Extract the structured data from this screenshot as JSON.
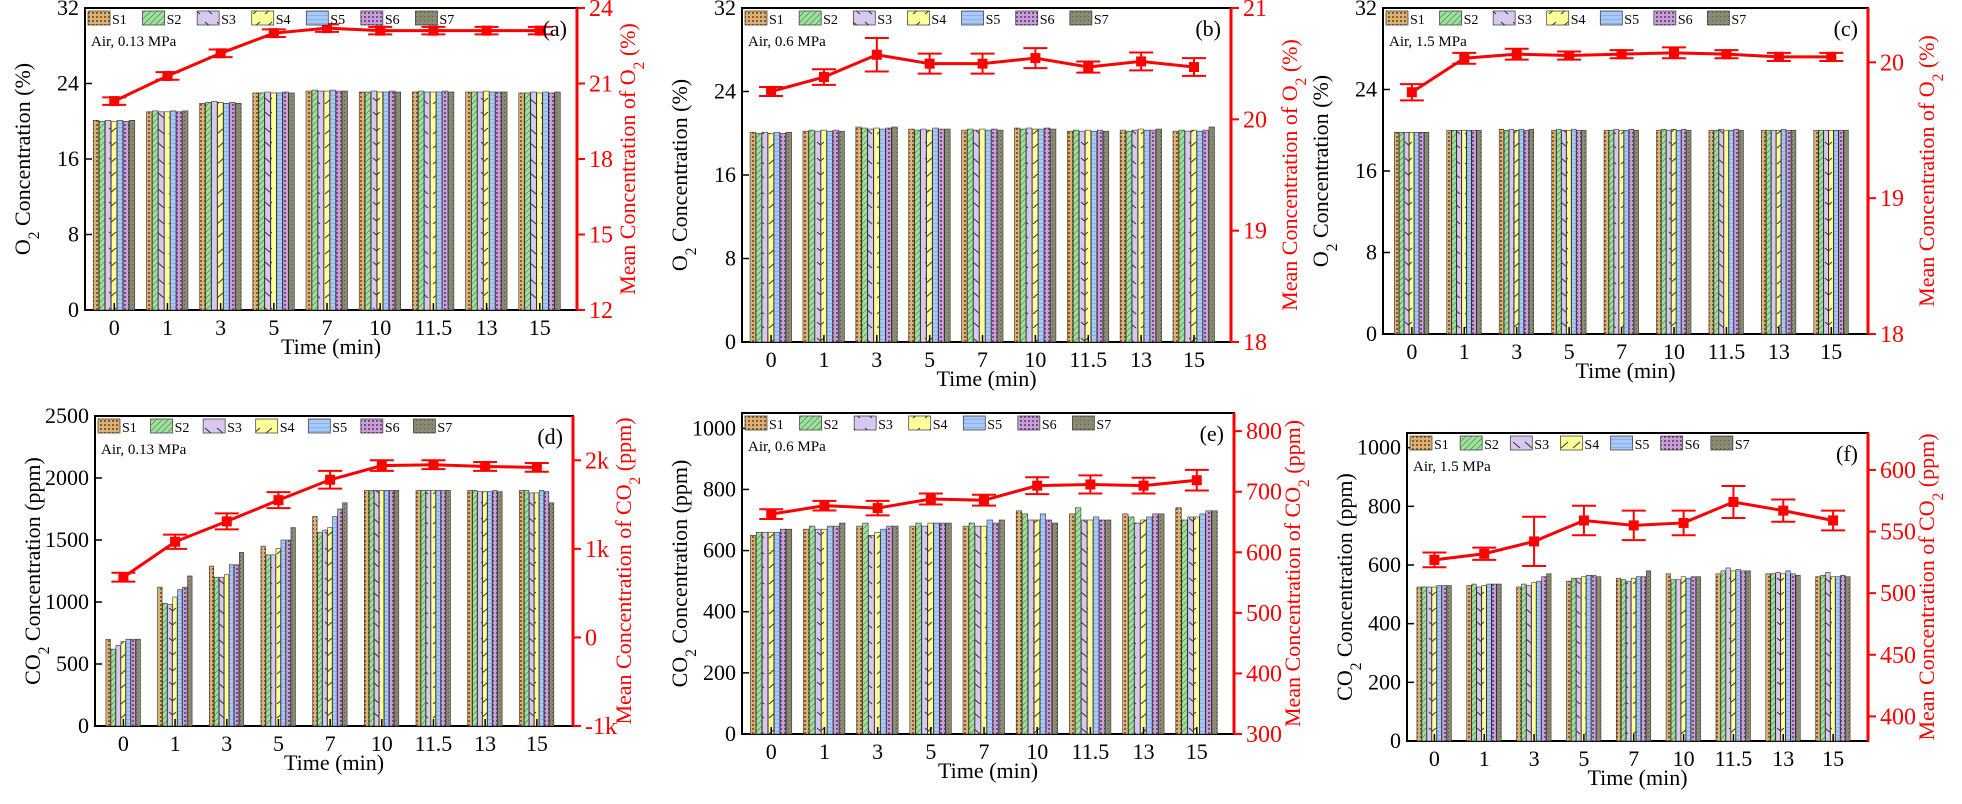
{
  "figure": {
    "time_axis_label": "Time (min)",
    "series_names": [
      "S1",
      "S2",
      "S3",
      "S4",
      "S5",
      "S6",
      "S7"
    ],
    "series_colors": [
      "#c8a060",
      "#9fe09f",
      "#d8c8f0",
      "#ffff99",
      "#a8c8f8",
      "#b890c8",
      "#8a8a72"
    ],
    "mean_color": "#ff0000"
  },
  "chart_data": [
    {
      "id": "a",
      "panel_label": "(a)",
      "condition": "Air, 0.13 MPa",
      "type": "bar",
      "categories": [
        "0",
        "1",
        "3",
        "5",
        "7",
        "10",
        "11.5",
        "13",
        "15"
      ],
      "xlabel": "Time (min)",
      "ylabel": "O2 Concentration (%)",
      "ylim": [
        0,
        32
      ],
      "yticks": [
        0,
        8,
        16,
        24,
        32
      ],
      "series": [
        {
          "name": "S1",
          "values": [
            20.1,
            21.0,
            21.9,
            23.0,
            23.2,
            23.1,
            23.1,
            23.1,
            23.0
          ]
        },
        {
          "name": "S2",
          "values": [
            20.0,
            21.1,
            22.0,
            23.0,
            23.3,
            23.1,
            23.2,
            23.1,
            23.0
          ]
        },
        {
          "name": "S3",
          "values": [
            20.1,
            21.0,
            22.1,
            23.1,
            23.2,
            23.2,
            23.1,
            23.1,
            23.1
          ]
        },
        {
          "name": "S4",
          "values": [
            20.0,
            21.0,
            22.0,
            23.0,
            23.2,
            23.1,
            23.1,
            23.2,
            23.0
          ]
        },
        {
          "name": "S5",
          "values": [
            20.1,
            21.1,
            21.9,
            23.0,
            23.3,
            23.1,
            23.1,
            23.1,
            23.1
          ]
        },
        {
          "name": "S6",
          "values": [
            20.0,
            21.0,
            22.0,
            23.1,
            23.2,
            23.2,
            23.2,
            23.1,
            23.0
          ]
        },
        {
          "name": "S7",
          "values": [
            20.1,
            21.1,
            21.9,
            23.0,
            23.2,
            23.1,
            23.1,
            23.1,
            23.1
          ]
        }
      ],
      "mean": {
        "ylabel": "Mean Concentration of O2 (%)",
        "ylim": [
          12,
          24
        ],
        "yticks": [
          12,
          15,
          18,
          21,
          24
        ],
        "values": [
          20.3,
          21.3,
          22.2,
          23.0,
          23.2,
          23.1,
          23.1,
          23.1,
          23.1
        ],
        "errors": [
          0.15,
          0.15,
          0.15,
          0.15,
          0.15,
          0.15,
          0.15,
          0.15,
          0.15
        ]
      }
    },
    {
      "id": "b",
      "panel_label": "(b)",
      "condition": "Air, 0.6 MPa",
      "type": "bar",
      "categories": [
        "0",
        "1",
        "3",
        "5",
        "7",
        "10",
        "11.5",
        "13",
        "15"
      ],
      "xlabel": "Time (min)",
      "ylabel": "O2 Concentration (%)",
      "ylim": [
        0,
        32
      ],
      "yticks": [
        0,
        8,
        16,
        24,
        32
      ],
      "series": [
        {
          "name": "S1",
          "values": [
            20.1,
            20.2,
            20.6,
            20.4,
            20.3,
            20.5,
            20.2,
            20.3,
            20.2
          ]
        },
        {
          "name": "S2",
          "values": [
            20.0,
            20.3,
            20.5,
            20.3,
            20.4,
            20.4,
            20.3,
            20.2,
            20.3
          ]
        },
        {
          "name": "S3",
          "values": [
            20.1,
            20.2,
            20.4,
            20.4,
            20.3,
            20.5,
            20.2,
            20.3,
            20.2
          ]
        },
        {
          "name": "S4",
          "values": [
            20.0,
            20.3,
            20.5,
            20.3,
            20.4,
            20.4,
            20.3,
            20.4,
            20.3
          ]
        },
        {
          "name": "S5",
          "values": [
            20.1,
            20.2,
            20.4,
            20.5,
            20.3,
            20.4,
            20.2,
            20.3,
            20.2
          ]
        },
        {
          "name": "S6",
          "values": [
            20.0,
            20.3,
            20.5,
            20.4,
            20.4,
            20.5,
            20.3,
            20.3,
            20.3
          ]
        },
        {
          "name": "S7",
          "values": [
            20.1,
            20.2,
            20.6,
            20.4,
            20.3,
            20.4,
            20.2,
            20.4,
            20.6
          ]
        }
      ],
      "mean": {
        "ylabel": "Mean Concentration of O2 (%)",
        "ylim": [
          18,
          21
        ],
        "yticks": [
          18,
          19,
          20,
          21
        ],
        "values": [
          20.25,
          20.38,
          20.58,
          20.5,
          20.5,
          20.55,
          20.47,
          20.52,
          20.47
        ],
        "errors": [
          0.04,
          0.07,
          0.15,
          0.09,
          0.09,
          0.09,
          0.05,
          0.08,
          0.08
        ]
      }
    },
    {
      "id": "c",
      "panel_label": "(c)",
      "condition": "Air, 1.5 MPa",
      "type": "bar",
      "categories": [
        "0",
        "1",
        "3",
        "5",
        "7",
        "10",
        "11.5",
        "13",
        "15"
      ],
      "xlabel": "Time (min)",
      "ylabel": "O2 Concentration (%)",
      "ylim": [
        0,
        32
      ],
      "yticks": [
        0,
        8,
        16,
        24,
        32
      ],
      "series": [
        {
          "name": "S1",
          "values": [
            19.8,
            20.0,
            20.1,
            20.0,
            20.0,
            20.0,
            20.0,
            20.0,
            20.0
          ]
        },
        {
          "name": "S2",
          "values": [
            19.8,
            20.0,
            20.0,
            20.1,
            20.0,
            20.1,
            20.0,
            20.0,
            20.0
          ]
        },
        {
          "name": "S3",
          "values": [
            19.8,
            20.0,
            20.1,
            20.0,
            20.1,
            20.0,
            20.1,
            20.0,
            20.0
          ]
        },
        {
          "name": "S4",
          "values": [
            19.8,
            20.0,
            20.0,
            20.0,
            20.0,
            20.1,
            20.0,
            20.0,
            20.0
          ]
        },
        {
          "name": "S5",
          "values": [
            19.8,
            20.0,
            20.1,
            20.1,
            20.0,
            20.0,
            20.0,
            20.1,
            20.0
          ]
        },
        {
          "name": "S6",
          "values": [
            19.8,
            20.0,
            20.0,
            20.0,
            20.1,
            20.1,
            20.1,
            20.0,
            20.0
          ]
        },
        {
          "name": "S7",
          "values": [
            19.8,
            20.0,
            20.1,
            20.0,
            20.0,
            20.0,
            20.0,
            20.0,
            20.0
          ]
        }
      ],
      "mean": {
        "ylabel": "Mean Concentration of O2 (%)",
        "ylim": [
          18,
          20.4
        ],
        "yticks": [
          18,
          19,
          20
        ],
        "values": [
          19.78,
          20.03,
          20.06,
          20.05,
          20.06,
          20.07,
          20.06,
          20.04,
          20.04
        ],
        "errors": [
          0.06,
          0.04,
          0.04,
          0.03,
          0.03,
          0.04,
          0.03,
          0.03,
          0.03
        ]
      }
    },
    {
      "id": "d",
      "panel_label": "(d)",
      "condition": "Air, 0.13 MPa",
      "type": "bar",
      "categories": [
        "0",
        "1",
        "3",
        "5",
        "7",
        "10",
        "11.5",
        "13",
        "15"
      ],
      "xlabel": "Time (min)",
      "ylabel": "CO2 Concentration (ppm)",
      "ylim": [
        0,
        2500
      ],
      "yticks": [
        0,
        500,
        1000,
        1500,
        2000,
        2500
      ],
      "series": [
        {
          "name": "S1",
          "values": [
            700,
            1120,
            1290,
            1450,
            1690,
            1900,
            1900,
            1900,
            1900
          ]
        },
        {
          "name": "S2",
          "values": [
            620,
            990,
            1200,
            1380,
            1560,
            1900,
            1900,
            1900,
            1900
          ]
        },
        {
          "name": "S3",
          "values": [
            650,
            980,
            1200,
            1380,
            1580,
            1900,
            1900,
            1890,
            1880
          ]
        },
        {
          "name": "S4",
          "values": [
            680,
            1040,
            1220,
            1430,
            1600,
            1900,
            1900,
            1890,
            1880
          ]
        },
        {
          "name": "S5",
          "values": [
            700,
            1100,
            1300,
            1500,
            1690,
            1900,
            1900,
            1890,
            1900
          ]
        },
        {
          "name": "S6",
          "values": [
            700,
            1120,
            1300,
            1500,
            1750,
            1900,
            1900,
            1900,
            1890
          ]
        },
        {
          "name": "S7",
          "values": [
            700,
            1210,
            1400,
            1600,
            1800,
            1900,
            1900,
            1890,
            1800
          ]
        }
      ],
      "mean": {
        "ylabel": "Mean Concentration of CO2 (ppm)",
        "ylim": [
          -1000,
          2500
        ],
        "yticks": [
          -1000,
          0,
          1000,
          2000
        ],
        "yticklabels": [
          "-1k",
          "0",
          "1k",
          "2k"
        ],
        "values": [
          680,
          1080,
          1310,
          1550,
          1780,
          1940,
          1950,
          1930,
          1920
        ],
        "errors": [
          50,
          80,
          90,
          90,
          100,
          60,
          50,
          50,
          50
        ]
      }
    },
    {
      "id": "e",
      "panel_label": "(e)",
      "condition": "Air, 0.6 MPa",
      "type": "bar",
      "categories": [
        "0",
        "1",
        "3",
        "5",
        "7",
        "10",
        "11.5",
        "13",
        "15"
      ],
      "xlabel": "Time (min)",
      "ylabel": "CO2 Concentration (ppm)",
      "ylim": [
        0,
        1050
      ],
      "yticks": [
        0,
        200,
        400,
        600,
        800,
        1000
      ],
      "series": [
        {
          "name": "S1",
          "values": [
            650,
            670,
            680,
            680,
            680,
            730,
            720,
            720,
            740
          ]
        },
        {
          "name": "S2",
          "values": [
            660,
            680,
            690,
            690,
            690,
            720,
            740,
            710,
            700
          ]
        },
        {
          "name": "S3",
          "values": [
            660,
            670,
            650,
            680,
            680,
            700,
            700,
            690,
            710
          ]
        },
        {
          "name": "S4",
          "values": [
            660,
            670,
            660,
            690,
            680,
            700,
            700,
            700,
            710
          ]
        },
        {
          "name": "S5",
          "values": [
            660,
            680,
            670,
            690,
            700,
            720,
            710,
            710,
            720
          ]
        },
        {
          "name": "S6",
          "values": [
            670,
            680,
            680,
            690,
            690,
            700,
            700,
            720,
            730
          ]
        },
        {
          "name": "S7",
          "values": [
            670,
            690,
            680,
            690,
            700,
            690,
            700,
            720,
            730
          ]
        }
      ],
      "mean": {
        "ylabel": "Mean Concentration of CO2 (ppm)",
        "ylim": [
          300,
          830
        ],
        "yticks": [
          300,
          400,
          500,
          600,
          700,
          800
        ],
        "values": [
          663,
          677,
          673,
          688,
          686,
          710,
          712,
          710,
          719
        ],
        "errors": [
          8,
          8,
          12,
          9,
          9,
          14,
          15,
          13,
          17
        ]
      }
    },
    {
      "id": "f",
      "panel_label": "(f)",
      "condition": "Air, 1.5 MPa",
      "type": "bar",
      "categories": [
        "0",
        "1",
        "3",
        "5",
        "7",
        "10",
        "11.5",
        "13",
        "15"
      ],
      "xlabel": "Time (min)",
      "ylabel": "CO2 Concentration (ppm)",
      "ylim": [
        0,
        1050
      ],
      "yticks": [
        0,
        200,
        400,
        600,
        800,
        1000
      ],
      "series": [
        {
          "name": "S1",
          "values": [
            525,
            530,
            525,
            545,
            555,
            570,
            570,
            570,
            560
          ]
        },
        {
          "name": "S2",
          "values": [
            525,
            535,
            535,
            555,
            550,
            550,
            580,
            570,
            565
          ]
        },
        {
          "name": "S3",
          "values": [
            525,
            525,
            530,
            555,
            545,
            550,
            590,
            575,
            575
          ]
        },
        {
          "name": "S4",
          "values": [
            525,
            530,
            540,
            560,
            555,
            560,
            580,
            570,
            560
          ]
        },
        {
          "name": "S5",
          "values": [
            530,
            535,
            545,
            565,
            560,
            555,
            585,
            580,
            560
          ]
        },
        {
          "name": "S6",
          "values": [
            530,
            535,
            560,
            565,
            560,
            560,
            580,
            570,
            565
          ]
        },
        {
          "name": "S7",
          "values": [
            530,
            535,
            570,
            560,
            580,
            560,
            580,
            565,
            560
          ]
        }
      ],
      "mean": {
        "ylabel": "Mean Concentration of CO2 (ppm)",
        "ylim": [
          380,
          630
        ],
        "yticks": [
          400,
          450,
          500,
          550,
          600
        ],
        "values": [
          527,
          532,
          542,
          559,
          555,
          557,
          574,
          567,
          559
        ],
        "errors": [
          6,
          5,
          20,
          12,
          12,
          10,
          13,
          9,
          8
        ]
      }
    }
  ]
}
